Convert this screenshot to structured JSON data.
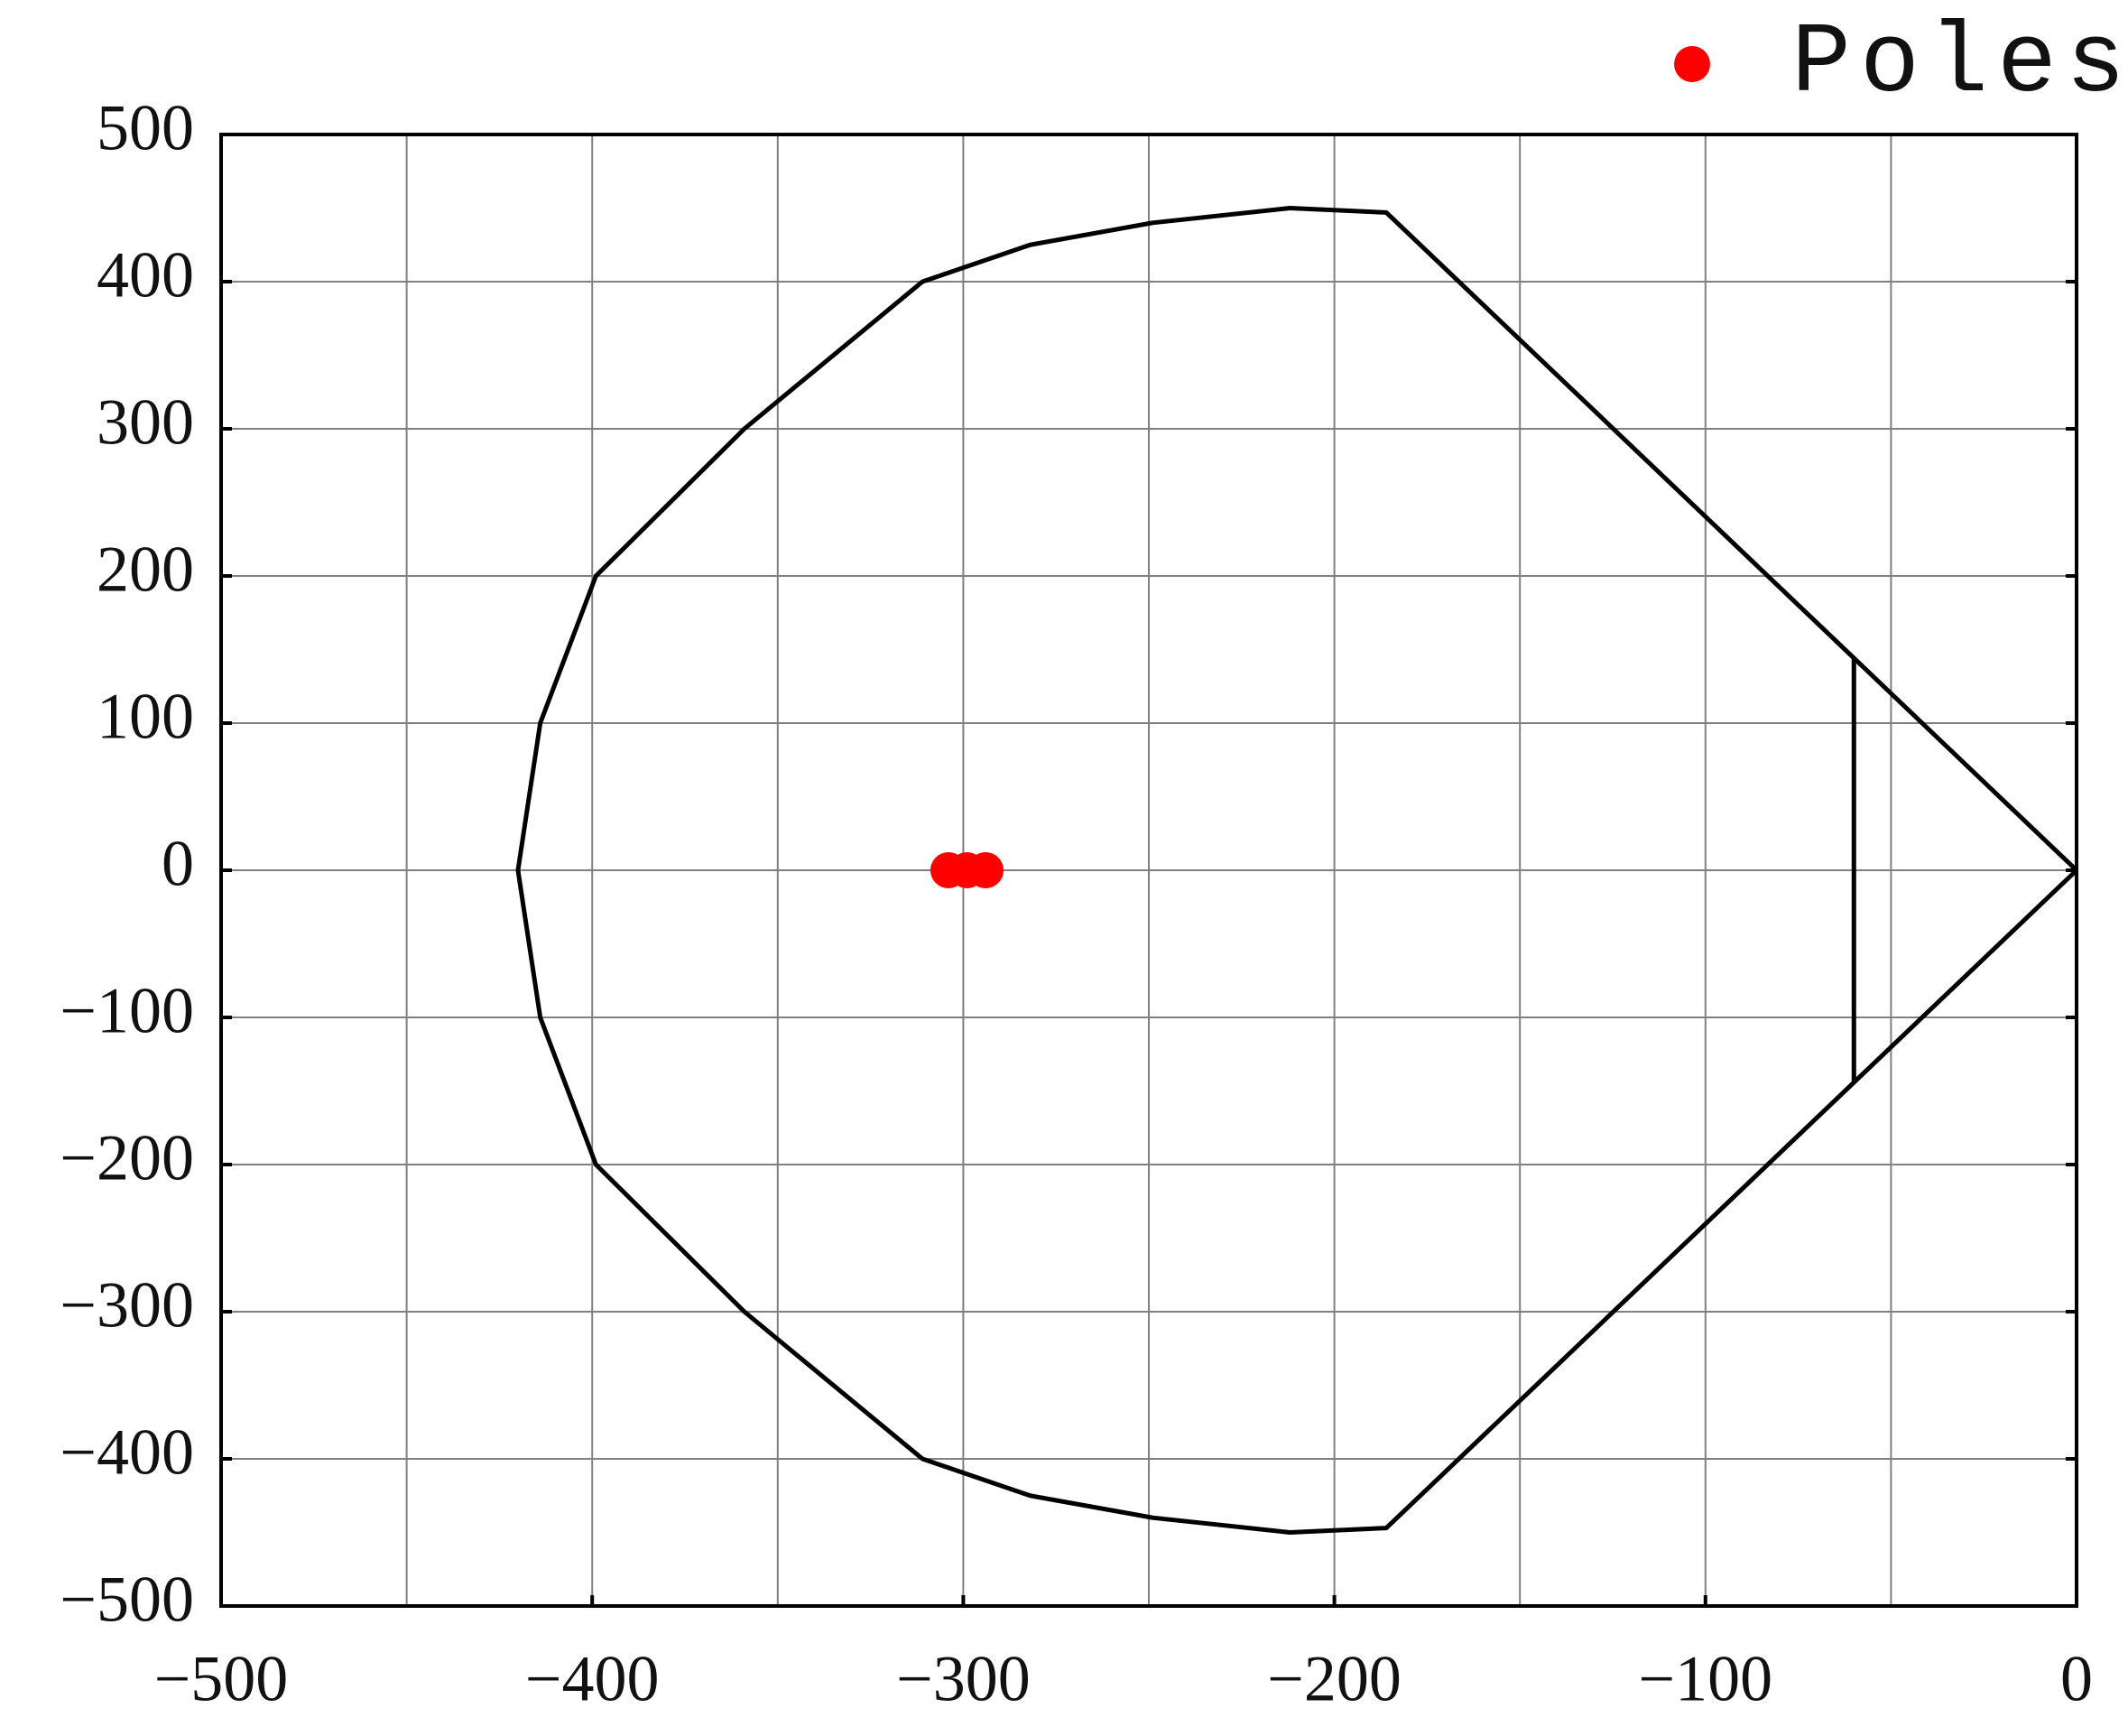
{
  "chart_data": {
    "type": "scatter",
    "series": [
      {
        "name": "Poles",
        "color": "#ff0000",
        "x": [
          -304,
          -299,
          -294
        ],
        "y": [
          0,
          0,
          0
        ]
      }
    ],
    "boundary": [
      {
        "color": "#000000",
        "x": [
          0,
          -186,
          -212,
          -249,
          -282,
          -311,
          -359,
          -399,
          -414,
          -420,
          -414,
          -399,
          -359,
          -311,
          -282,
          -249,
          -212,
          -186,
          0
        ],
        "y": [
          0,
          447,
          450,
          440,
          425,
          400,
          300,
          200,
          100,
          0,
          -100,
          -200,
          -300,
          -400,
          -425,
          -440,
          -450,
          -447,
          0
        ]
      },
      {
        "color": "#000000",
        "x": [
          -60,
          -60
        ],
        "y": [
          144,
          -144
        ]
      }
    ],
    "xlim": [
      -500,
      0
    ],
    "ylim": [
      -500,
      500
    ],
    "xticks": [
      {
        "value": -500,
        "label": "−500"
      },
      {
        "value": -400,
        "label": "−400"
      },
      {
        "value": -300,
        "label": "−300"
      },
      {
        "value": -200,
        "label": "−200"
      },
      {
        "value": -100,
        "label": "−100"
      },
      0
    ],
    "xminor": [
      -450,
      -350,
      -250,
      -150,
      -50
    ],
    "yticks": [
      {
        "value": -500,
        "label": "−500"
      },
      {
        "value": -400,
        "label": "−400"
      },
      {
        "value": -300,
        "label": "−300"
      },
      {
        "value": -200,
        "label": "−200"
      },
      {
        "value": -100,
        "label": "−100"
      },
      0,
      100,
      200,
      300,
      400,
      500
    ],
    "grid": true,
    "legend": "top-right"
  }
}
